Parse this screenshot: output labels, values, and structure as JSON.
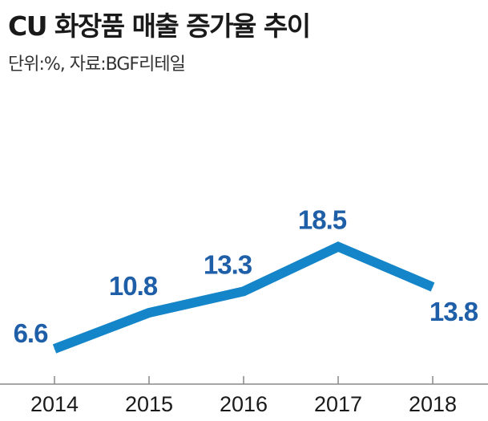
{
  "title": "CU 화장품 매출 증가율 추이",
  "subtitle": "단위:%, 자료:BGF리테일",
  "colors": {
    "line": "#1485c8",
    "label": "#1f5fa8",
    "axis": "#888888",
    "text": "#1a1a1a"
  },
  "chart_data": {
    "type": "line",
    "categories": [
      "2014",
      "2015",
      "2016",
      "2017",
      "2018"
    ],
    "values": [
      6.6,
      10.8,
      13.3,
      18.5,
      13.8
    ],
    "title": "CU 화장품 매출 증가율 추이",
    "subtitle": "단위:%, 자료:BGF리테일",
    "xlabel": "",
    "ylabel": "",
    "grid": false,
    "legend": "none",
    "data_labels": [
      "6.6",
      "10.8",
      "13.3",
      "18.5",
      "13.8"
    ]
  }
}
